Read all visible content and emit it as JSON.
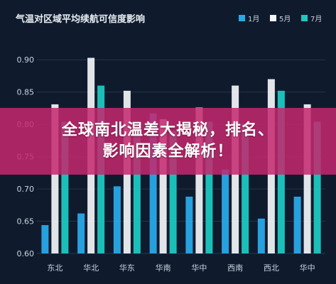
{
  "colors": {
    "bg": "#0f1b2d",
    "grid": "#26354a",
    "text": "#c9d3df",
    "title": "#e8edf3",
    "banner": "#c4286e"
  },
  "chart_data": {
    "type": "bar",
    "title": "气温对区域平均续航可信度影响",
    "xlabel": "",
    "ylabel": "",
    "ylim": [
      0.6,
      0.92
    ],
    "yticks": [
      "0.60",
      "0.65",
      "0.70",
      "0.75",
      "0.80",
      "0.85",
      "0.90"
    ],
    "grid": true,
    "legend_position": "top-right",
    "categories": [
      "东北",
      "华北",
      "华东",
      "华南",
      "华中",
      "西南",
      "西北",
      "华中"
    ],
    "series": [
      {
        "name": "1月",
        "color": "#29a8e8",
        "values": [
          0.644,
          0.662,
          0.704,
          0.817,
          0.688,
          0.73,
          0.654,
          0.688
        ]
      },
      {
        "name": "5月",
        "color": "#f4f6f9",
        "values": [
          0.831,
          0.903,
          0.852,
          0.808,
          0.826,
          0.86,
          0.87,
          0.831
        ]
      },
      {
        "name": "7月",
        "color": "#1ec8c0",
        "values": [
          0.804,
          0.86,
          0.798,
          0.79,
          0.804,
          0.801,
          0.852,
          0.804
        ]
      }
    ]
  },
  "banner": {
    "line1": "全球南北温差大揭秘，排名、",
    "line2": "影响因素全解析！"
  }
}
